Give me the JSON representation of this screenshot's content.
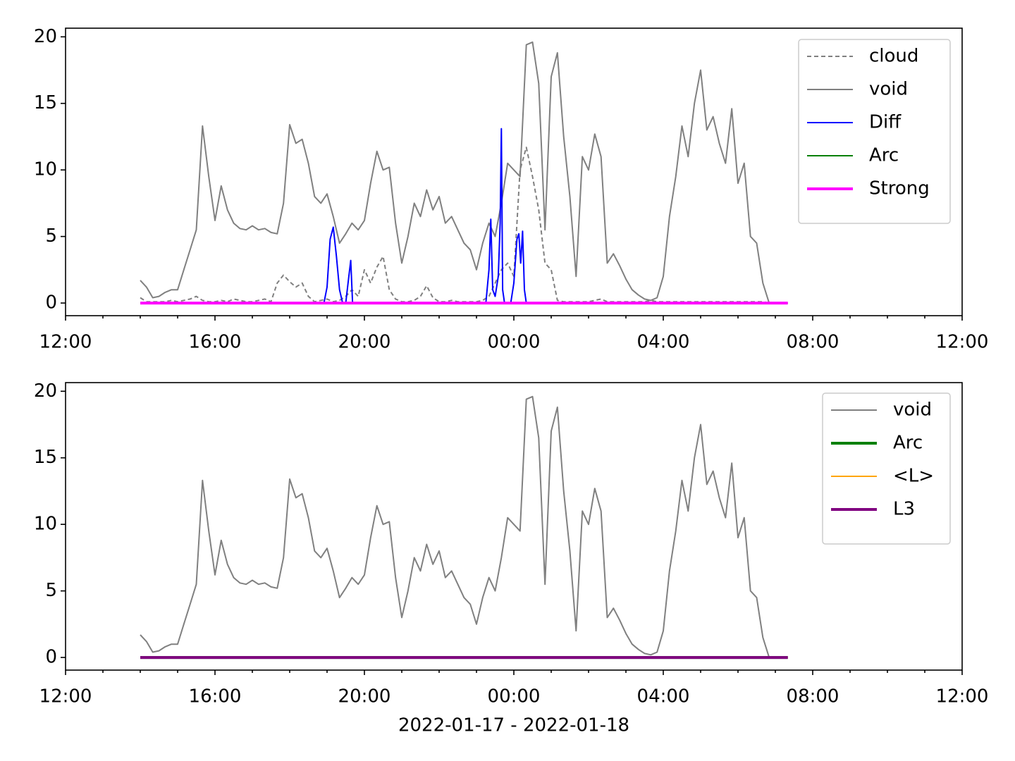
{
  "chart_data": [
    {
      "type": "line",
      "legend": "upper right",
      "xlim": [
        "12:00",
        "12:00"
      ],
      "ylim": [
        -0.95,
        20.65
      ],
      "xticks": [
        "12:00",
        "16:00",
        "20:00",
        "00:00",
        "04:00",
        "08:00",
        "12:00"
      ],
      "xminorticks": [
        "13:00",
        "14:00",
        "15:00",
        "17:00",
        "18:00",
        "19:00",
        "21:00",
        "22:00",
        "23:00",
        "01:00",
        "02:00",
        "03:00",
        "05:00",
        "06:00",
        "07:00",
        "09:00",
        "10:00",
        "11:00"
      ],
      "yticks": [
        0,
        5,
        10,
        15,
        20
      ],
      "x": [
        "14:00",
        "14:10",
        "14:20",
        "14:30",
        "14:40",
        "14:50",
        "15:00",
        "15:10",
        "15:20",
        "15:30",
        "15:40",
        "15:50",
        "16:00",
        "16:10",
        "16:20",
        "16:30",
        "16:40",
        "16:50",
        "17:00",
        "17:10",
        "17:20",
        "17:30",
        "17:40",
        "17:50",
        "18:00",
        "18:10",
        "18:20",
        "18:30",
        "18:40",
        "18:50",
        "19:00",
        "19:10",
        "19:20",
        "19:30",
        "19:40",
        "19:50",
        "20:00",
        "20:10",
        "20:20",
        "20:30",
        "20:40",
        "20:50",
        "21:00",
        "21:10",
        "21:20",
        "21:30",
        "21:40",
        "21:50",
        "22:00",
        "22:10",
        "22:20",
        "22:30",
        "22:40",
        "22:50",
        "23:00",
        "23:10",
        "23:20",
        "23:30",
        "23:40",
        "23:50",
        "00:00",
        "00:10",
        "00:20",
        "00:30",
        "00:40",
        "00:50",
        "01:00",
        "01:10",
        "01:20",
        "01:30",
        "01:40",
        "01:50",
        "02:00",
        "02:10",
        "02:20",
        "02:30",
        "02:40",
        "02:50",
        "03:00",
        "03:10",
        "03:20",
        "03:30",
        "03:40",
        "03:50",
        "04:00",
        "04:10",
        "04:20",
        "04:30",
        "04:40",
        "04:50",
        "05:00",
        "05:10",
        "05:20",
        "05:30",
        "05:40",
        "05:50",
        "06:00",
        "06:10",
        "06:20",
        "06:30",
        "06:40",
        "06:50"
      ],
      "series": [
        {
          "name": "cloud",
          "color": "#808080",
          "linestyle": "dashed",
          "linewidth": 2,
          "values": [
            0.4,
            0.1,
            0.1,
            0.1,
            0.1,
            0.2,
            0.1,
            0.2,
            0.3,
            0.5,
            0.2,
            0.1,
            0.1,
            0.2,
            0.1,
            0.3,
            0.2,
            0.1,
            0.1,
            0.2,
            0.3,
            0.1,
            1.5,
            2.1,
            1.6,
            1.2,
            1.5,
            0.5,
            0.1,
            0.2,
            0.3,
            0.1,
            0.2,
            0.5,
            1.0,
            0.5,
            2.5,
            1.5,
            2.7,
            3.5,
            1.0,
            0.3,
            0.1,
            0.1,
            0.2,
            0.5,
            1.3,
            0.4,
            0.1,
            0.1,
            0.2,
            0.1,
            0.1,
            0.1,
            0.1,
            0.2,
            0.5,
            1.5,
            2.5,
            3.0,
            2.0,
            10.0,
            11.7,
            9.5,
            7.0,
            3.0,
            2.5,
            0.2,
            0.1,
            0.1,
            0.1,
            0.1,
            0.1,
            0.2,
            0.3,
            0.1,
            0.1,
            0.1,
            0.1,
            0.1,
            0.1,
            0.1,
            0.2,
            0.1,
            0.1,
            0.1,
            0.1,
            0.1,
            0.1,
            0.1,
            0.1,
            0.1,
            0.1,
            0.1,
            0.1,
            0.1,
            0.1,
            0.1,
            0.1,
            0.1,
            0.1,
            0.0
          ]
        },
        {
          "name": "void",
          "color": "#808080",
          "linestyle": "solid",
          "linewidth": 2,
          "values": [
            1.7,
            1.2,
            0.4,
            0.5,
            0.8,
            1.0,
            1.0,
            2.5,
            4.0,
            5.5,
            13.3,
            9.5,
            6.2,
            8.8,
            7.0,
            6.0,
            5.6,
            5.5,
            5.8,
            5.5,
            5.6,
            5.3,
            5.2,
            7.5,
            13.4,
            12.0,
            12.3,
            10.5,
            8.0,
            7.5,
            8.2,
            6.5,
            4.5,
            5.2,
            6.0,
            5.5,
            6.2,
            9.0,
            11.4,
            10.0,
            10.2,
            6.0,
            3.0,
            5.0,
            7.5,
            6.5,
            8.5,
            7.0,
            8.0,
            6.0,
            6.5,
            5.5,
            4.5,
            4.0,
            2.5,
            4.5,
            6.0,
            5.0,
            7.5,
            10.5,
            10.0,
            9.5,
            19.4,
            19.6,
            16.5,
            5.5,
            17.0,
            18.8,
            12.5,
            8.0,
            2.0,
            11.0,
            10.0,
            12.7,
            11.0,
            3.0,
            3.7,
            2.8,
            1.8,
            1.0,
            0.6,
            0.3,
            0.2,
            0.4,
            2.0,
            6.5,
            9.5,
            13.3,
            11.0,
            15.0,
            17.5,
            13.0,
            14.0,
            12.0,
            10.5,
            14.6,
            9.0,
            10.5,
            5.0,
            4.5,
            1.5,
            0.0
          ]
        },
        {
          "name": "Diff",
          "color": "#0000ff",
          "linestyle": "solid",
          "linewidth": 2,
          "x": [
            "18:55",
            "19:00",
            "19:05",
            "19:10",
            "19:15",
            "19:20",
            "19:25",
            "19:30",
            "19:35",
            "19:38",
            "19:41",
            "19:45",
            "21:00",
            "23:15",
            "23:20",
            "23:23",
            "23:26",
            "23:30",
            "23:35",
            "23:38",
            "23:40",
            "23:42",
            "23:45",
            "23:55",
            "00:00",
            "00:05",
            "00:08",
            "00:11",
            "00:14",
            "00:17",
            "00:20"
          ],
          "values": [
            0,
            1.2,
            4.8,
            5.7,
            3.5,
            1.0,
            0,
            0,
            2.0,
            3.2,
            0,
            0,
            null,
            0,
            2.5,
            6.3,
            1.0,
            0.5,
            2.0,
            6.0,
            13.1,
            1.0,
            0,
            0,
            1.5,
            4.8,
            5.2,
            3.0,
            5.4,
            1.0,
            0
          ]
        },
        {
          "name": "Arc",
          "color": "#008000",
          "linestyle": "solid",
          "linewidth": 2,
          "x": [
            "14:00",
            "07:20"
          ],
          "values": [
            0,
            0
          ]
        },
        {
          "name": "Strong",
          "color": "#ff00ff",
          "linestyle": "solid",
          "linewidth": 4,
          "x": [
            "14:00",
            "07:20"
          ],
          "values": [
            0,
            0
          ]
        }
      ]
    },
    {
      "type": "line",
      "legend": "upper right",
      "xlim": [
        "12:00",
        "12:00"
      ],
      "ylim": [
        -0.95,
        20.65
      ],
      "xlabel": "2022-01-17 - 2022-01-18",
      "xticks": [
        "12:00",
        "16:00",
        "20:00",
        "00:00",
        "04:00",
        "08:00",
        "12:00"
      ],
      "xminorticks": [
        "13:00",
        "14:00",
        "15:00",
        "17:00",
        "18:00",
        "19:00",
        "21:00",
        "22:00",
        "23:00",
        "01:00",
        "02:00",
        "03:00",
        "05:00",
        "06:00",
        "07:00",
        "09:00",
        "10:00",
        "11:00"
      ],
      "yticks": [
        0,
        5,
        10,
        15,
        20
      ],
      "x": [
        "14:00",
        "14:10",
        "14:20",
        "14:30",
        "14:40",
        "14:50",
        "15:00",
        "15:10",
        "15:20",
        "15:30",
        "15:40",
        "15:50",
        "16:00",
        "16:10",
        "16:20",
        "16:30",
        "16:40",
        "16:50",
        "17:00",
        "17:10",
        "17:20",
        "17:30",
        "17:40",
        "17:50",
        "18:00",
        "18:10",
        "18:20",
        "18:30",
        "18:40",
        "18:50",
        "19:00",
        "19:10",
        "19:20",
        "19:30",
        "19:40",
        "19:50",
        "20:00",
        "20:10",
        "20:20",
        "20:30",
        "20:40",
        "20:50",
        "21:00",
        "21:10",
        "21:20",
        "21:30",
        "21:40",
        "21:50",
        "22:00",
        "22:10",
        "22:20",
        "22:30",
        "22:40",
        "22:50",
        "23:00",
        "23:10",
        "23:20",
        "23:30",
        "23:40",
        "23:50",
        "00:00",
        "00:10",
        "00:20",
        "00:30",
        "00:40",
        "00:50",
        "01:00",
        "01:10",
        "01:20",
        "01:30",
        "01:40",
        "01:50",
        "02:00",
        "02:10",
        "02:20",
        "02:30",
        "02:40",
        "02:50",
        "03:00",
        "03:10",
        "03:20",
        "03:30",
        "03:40",
        "03:50",
        "04:00",
        "04:10",
        "04:20",
        "04:30",
        "04:40",
        "04:50",
        "05:00",
        "05:10",
        "05:20",
        "05:30",
        "05:40",
        "05:50",
        "06:00",
        "06:10",
        "06:20",
        "06:30",
        "06:40",
        "06:50"
      ],
      "series": [
        {
          "name": "void",
          "color": "#808080",
          "linestyle": "solid",
          "linewidth": 2,
          "values": [
            1.7,
            1.2,
            0.4,
            0.5,
            0.8,
            1.0,
            1.0,
            2.5,
            4.0,
            5.5,
            13.3,
            9.5,
            6.2,
            8.8,
            7.0,
            6.0,
            5.6,
            5.5,
            5.8,
            5.5,
            5.6,
            5.3,
            5.2,
            7.5,
            13.4,
            12.0,
            12.3,
            10.5,
            8.0,
            7.5,
            8.2,
            6.5,
            4.5,
            5.2,
            6.0,
            5.5,
            6.2,
            9.0,
            11.4,
            10.0,
            10.2,
            6.0,
            3.0,
            5.0,
            7.5,
            6.5,
            8.5,
            7.0,
            8.0,
            6.0,
            6.5,
            5.5,
            4.5,
            4.0,
            2.5,
            4.5,
            6.0,
            5.0,
            7.5,
            10.5,
            10.0,
            9.5,
            19.4,
            19.6,
            16.5,
            5.5,
            17.0,
            18.8,
            12.5,
            8.0,
            2.0,
            11.0,
            10.0,
            12.7,
            11.0,
            3.0,
            3.7,
            2.8,
            1.8,
            1.0,
            0.6,
            0.3,
            0.2,
            0.4,
            2.0,
            6.5,
            9.5,
            13.3,
            11.0,
            15.0,
            17.5,
            13.0,
            14.0,
            12.0,
            10.5,
            14.6,
            9.0,
            10.5,
            5.0,
            4.5,
            1.5,
            0.0
          ]
        },
        {
          "name": "Arc",
          "color": "#008000",
          "linestyle": "solid",
          "linewidth": 4,
          "x": [
            "14:00",
            "07:20"
          ],
          "values": [
            0,
            0
          ]
        },
        {
          "name": "<L>",
          "color": "#ffa500",
          "linestyle": "solid",
          "linewidth": 2,
          "x": [
            "14:00",
            "07:20"
          ],
          "values": [
            0,
            0
          ]
        },
        {
          "name": "L3",
          "color": "#800080",
          "linestyle": "solid",
          "linewidth": 4,
          "x": [
            "14:00",
            "07:20"
          ],
          "values": [
            0,
            0
          ]
        }
      ]
    }
  ]
}
